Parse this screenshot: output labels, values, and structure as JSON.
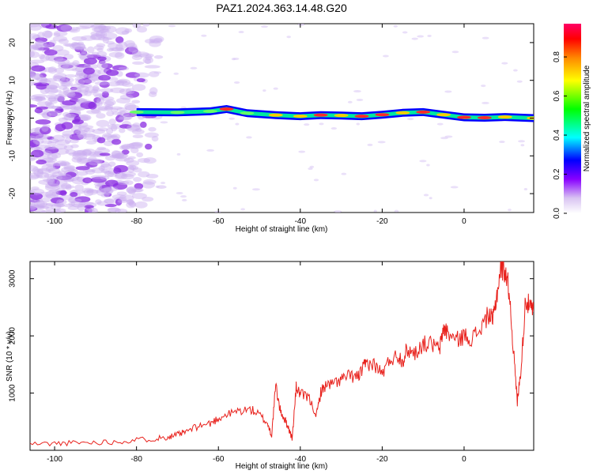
{
  "title": "PAZ1.2024.363.14.48.G20",
  "colors": {
    "noise": "#8a2be2",
    "snr_line": "#e8211c",
    "colorbar": [
      "#ffffff",
      "#d9c4f2",
      "#8800ff",
      "#0000ff",
      "#00ffff",
      "#00ff00",
      "#ffff00",
      "#ff8800",
      "#ff0000",
      "#ff0066"
    ]
  },
  "chart_data": [
    {
      "type": "heatmap",
      "title": "PAZ1.2024.363.14.48.G20",
      "xlabel": "Height of straight line (km)",
      "ylabel": "Frequency (Hz)",
      "xlim": [
        -106,
        17
      ],
      "ylim": [
        -25,
        25
      ],
      "xticks": [
        -100,
        -80,
        -60,
        -40,
        -20,
        0
      ],
      "yticks": [
        -20,
        -10,
        0,
        10,
        20
      ],
      "colorbar": {
        "label": "Normalized spectral amplitude",
        "range": [
          0,
          0.97
        ],
        "ticks": [
          0.0,
          0.2,
          0.4,
          0.6,
          0.8
        ]
      },
      "ridge_start_km": -80,
      "ridge_freq_hz": [
        {
          "x": -80,
          "y": 1.6
        },
        {
          "x": -70,
          "y": 1.5
        },
        {
          "x": -62,
          "y": 1.8
        },
        {
          "x": -58,
          "y": 2.4
        },
        {
          "x": -53,
          "y": 1.3
        },
        {
          "x": -46,
          "y": 0.8
        },
        {
          "x": -40,
          "y": 0.5
        },
        {
          "x": -35,
          "y": 0.8
        },
        {
          "x": -30,
          "y": 0.7
        },
        {
          "x": -25,
          "y": 0.5
        },
        {
          "x": -20,
          "y": 0.9
        },
        {
          "x": -15,
          "y": 1.4
        },
        {
          "x": -10,
          "y": 1.6
        },
        {
          "x": -5,
          "y": 0.9
        },
        {
          "x": 0,
          "y": 0.2
        },
        {
          "x": 5,
          "y": 0.1
        },
        {
          "x": 10,
          "y": 0.3
        },
        {
          "x": 17,
          "y": 0.0
        }
      ],
      "ridge_amplitude": [
        0.45,
        0.55,
        0.6,
        0.9,
        0.7,
        0.85,
        0.8,
        0.9,
        0.85,
        0.9,
        0.95,
        0.8,
        0.9,
        0.85,
        0.95,
        0.9,
        0.85,
        0.8
      ]
    },
    {
      "type": "line",
      "xlabel": "Height of straight line (km)",
      "ylabel": "SNR (10 * v/v)",
      "xlim": [
        -106,
        17
      ],
      "ylim": [
        0,
        3300
      ],
      "xticks": [
        -100,
        -80,
        -60,
        -40,
        -20,
        0
      ],
      "yticks": [
        1000,
        2000,
        3000
      ],
      "series": [
        {
          "x": [
            -106,
            -100,
            -95,
            -90,
            -85,
            -80,
            -75,
            -72,
            -70,
            -68,
            -65,
            -62,
            -60,
            -58,
            -55,
            -52,
            -50,
            -48,
            -47,
            -46,
            -45,
            -44,
            -43,
            -42,
            -41,
            -40,
            -38,
            -36,
            -35,
            -34,
            -32,
            -30,
            -28,
            -26,
            -25,
            -24,
            -22,
            -20,
            -18,
            -16,
            -15,
            -14,
            -12,
            -10,
            -8,
            -6,
            -5,
            -4,
            -2,
            0,
            2,
            4,
            6,
            7,
            8,
            9,
            10,
            11,
            12,
            13,
            14,
            15,
            16,
            17
          ],
          "y": [
            110,
            120,
            130,
            140,
            150,
            180,
            210,
            240,
            270,
            320,
            420,
            470,
            560,
            620,
            690,
            710,
            620,
            470,
            260,
            1140,
            720,
            560,
            420,
            200,
            1100,
            980,
            920,
            620,
            1020,
            1120,
            1160,
            1240,
            1300,
            1280,
            1380,
            1520,
            1500,
            1340,
            1600,
            1650,
            1560,
            1760,
            1700,
            1860,
            1860,
            1760,
            2140,
            2060,
            1920,
            2000,
            1960,
            2120,
            2380,
            2250,
            2720,
            3200,
            3150,
            2800,
            1800,
            850,
            1500,
            2650,
            2500,
            2420
          ]
        }
      ]
    }
  ]
}
